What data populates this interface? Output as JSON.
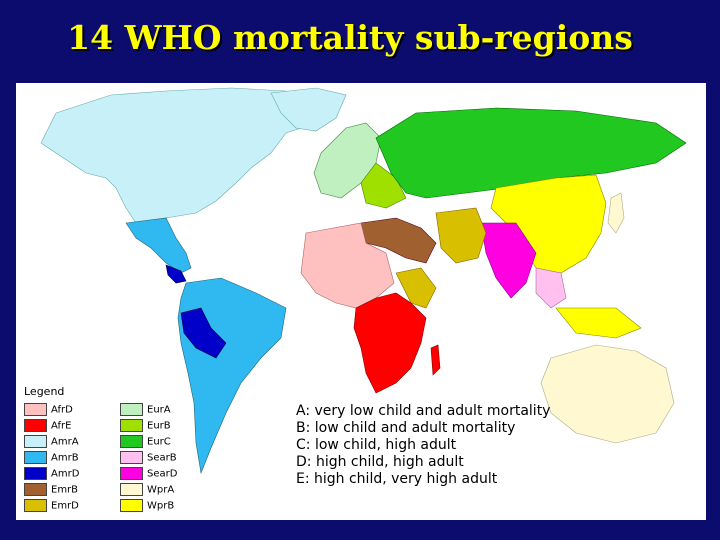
{
  "title": "14 WHO mortality sub-regions",
  "legend": {
    "title": "Legend",
    "items": [
      {
        "label": "AfrD",
        "color": "#ffc0c0"
      },
      {
        "label": "AfrE",
        "color": "#ff0000"
      },
      {
        "label": "AmrA",
        "color": "#c8f0f8"
      },
      {
        "label": "AmrB",
        "color": "#30b8f0"
      },
      {
        "label": "AmrD",
        "color": "#0000c8"
      },
      {
        "label": "EmrB",
        "color": "#a06030"
      },
      {
        "label": "EmrD",
        "color": "#d8c000"
      },
      {
        "label": "EurA",
        "color": "#c0f0c0"
      },
      {
        "label": "EurB",
        "color": "#a0e000"
      },
      {
        "label": "EurC",
        "color": "#20c820"
      },
      {
        "label": "SearB",
        "color": "#ffc0f0"
      },
      {
        "label": "SearD",
        "color": "#ff00e0"
      },
      {
        "label": "WprA",
        "color": "#fff8d0"
      },
      {
        "label": "WprB",
        "color": "#ffff00"
      }
    ]
  },
  "key": [
    "A: very low child and adult mortality",
    "B: low child and adult mortality",
    "C: low child, high adult",
    "D: high child, high adult",
    "E: high child, very high adult"
  ]
}
